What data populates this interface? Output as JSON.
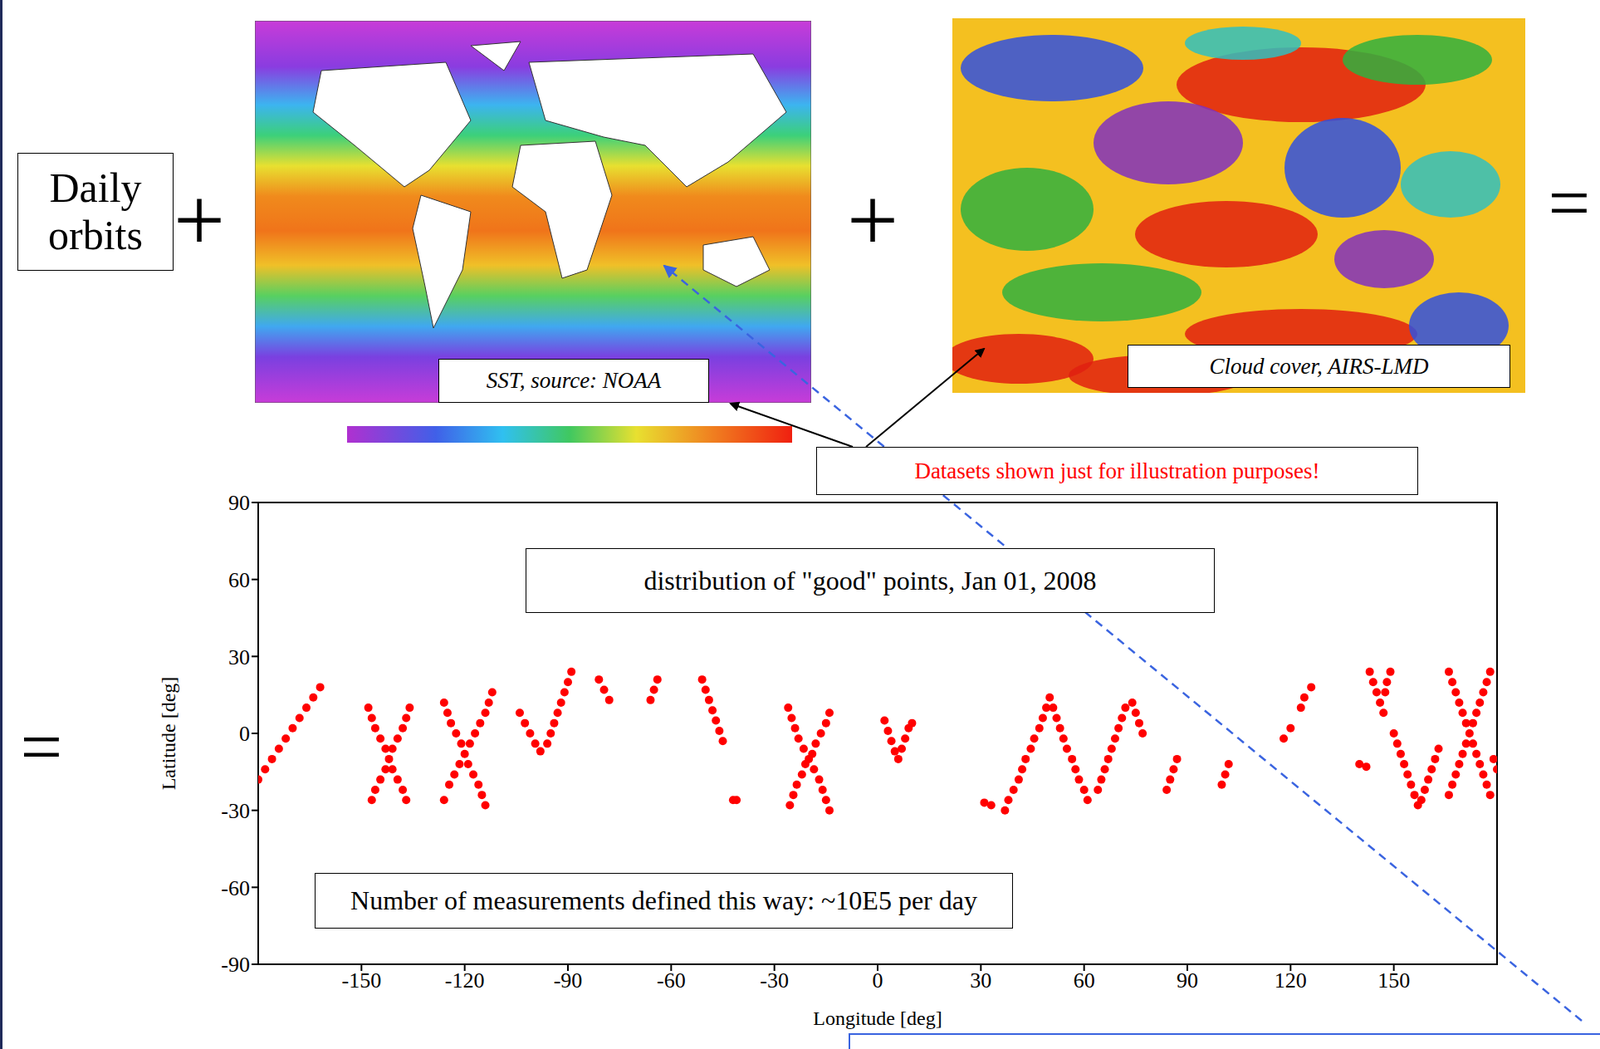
{
  "diagram": {
    "daily_orbits": "Daily orbits",
    "operators": {
      "plus": "+",
      "equals": "="
    },
    "images": [
      {
        "caption": "SST, source: NOAA"
      },
      {
        "caption": "Cloud cover, AIRS-LMD"
      }
    ],
    "note": "Datasets shown just for illustration purposes!"
  },
  "chart_data": {
    "type": "scatter",
    "annotations": [
      "distribution of \"good\" points, Jan 01, 2008",
      "Number of measurements defined this way: ~10E5 per day"
    ],
    "x_label": "Longitude [deg]",
    "y_label": "Latitude [deg]",
    "xlim": [
      -180,
      180
    ],
    "ylim": [
      -90,
      90
    ],
    "xticks": [
      -150,
      -120,
      -90,
      -60,
      -30,
      0,
      30,
      60,
      90,
      120,
      150
    ],
    "yticks": [
      -90,
      -60,
      -30,
      0,
      30,
      60,
      90
    ],
    "grid": false,
    "color": "#ff0000",
    "marker": "circle",
    "x": [
      -180,
      -178,
      -176,
      -174,
      -172,
      -170,
      -168,
      -166,
      -164,
      -162,
      -148,
      -147,
      -146,
      -144.5,
      -143,
      -142,
      -141,
      -139.5,
      -138,
      -137,
      -136,
      -137,
      -138,
      -139.5,
      -141,
      -143,
      -144.5,
      -146,
      -147,
      -126,
      -125,
      -124,
      -122.5,
      -121,
      -120,
      -119,
      -117.5,
      -116,
      -115,
      -114,
      -112,
      -113,
      -114,
      -115.5,
      -117,
      -118.5,
      -121.5,
      -123,
      -124.5,
      -126,
      -104,
      -102.5,
      -101,
      -99.5,
      -98,
      -96,
      -95,
      -94,
      -93,
      -92,
      -91,
      -90,
      -89,
      -81,
      -79.5,
      -78,
      -66,
      -65,
      -64,
      -51,
      -50,
      -49,
      -48,
      -47,
      -46,
      -45,
      -42,
      -41,
      -26,
      -25,
      -24,
      -23,
      -21.5,
      -20,
      -18.5,
      -17,
      -16,
      -15,
      -14,
      -14,
      -15,
      -16.5,
      -18,
      -19,
      -21,
      -22,
      -23.5,
      -24.5,
      -25.5,
      2,
      3,
      4,
      5,
      6,
      7,
      8,
      9,
      10,
      31,
      33,
      37,
      38,
      39.5,
      41,
      42,
      43,
      44.5,
      45.5,
      47,
      48,
      49,
      50,
      51,
      52,
      53,
      54,
      55,
      56.5,
      57.5,
      58.5,
      60,
      61,
      64,
      65,
      66,
      67,
      68,
      69,
      70,
      71,
      72,
      74,
      75,
      76,
      77,
      84,
      85,
      86,
      87,
      100,
      101,
      102,
      118,
      120,
      123,
      124,
      126,
      143,
      144,
      145,
      146,
      147,
      149,
      148,
      147.5,
      140,
      142,
      150,
      151,
      152,
      153,
      154,
      155,
      156,
      157,
      158,
      159,
      160,
      161,
      162,
      163,
      166,
      167,
      168,
      169,
      170,
      171,
      172,
      173,
      174,
      175,
      176,
      177,
      178,
      178,
      177,
      176,
      175,
      174,
      173,
      171,
      170,
      169,
      168,
      167,
      166,
      179,
      180
    ],
    "values": [
      -18,
      -14,
      -10,
      -6,
      -2,
      2,
      6,
      10,
      14,
      18,
      10,
      6,
      2,
      -2,
      -6,
      -10,
      -14,
      -18,
      -22,
      -26,
      10,
      6,
      2,
      -2,
      -6,
      -14,
      -18,
      -22,
      -26,
      12,
      8,
      4,
      0,
      -4,
      -8,
      -12,
      -16,
      -20,
      -24,
      -28,
      16,
      12,
      8,
      4,
      0,
      -4,
      -12,
      -16,
      -20,
      -26,
      8,
      4,
      0,
      -4,
      -7,
      -4,
      0,
      4,
      8,
      12,
      16,
      20,
      24,
      21,
      17,
      13,
      13,
      17,
      21,
      21,
      17,
      13,
      9,
      5,
      1,
      -3,
      -26,
      -26,
      10,
      6,
      2,
      -2,
      -6,
      -10,
      -14,
      -18,
      -22,
      -26,
      -30,
      8,
      4,
      0,
      -4,
      -8,
      -12,
      -16,
      -20,
      -24,
      -28,
      5,
      1,
      -3,
      -7,
      -10,
      -6,
      -2,
      2,
      4,
      -27,
      -28,
      -30,
      -26,
      -22,
      -18,
      -14,
      -10,
      -6,
      -2,
      2,
      6,
      10,
      14,
      10,
      6,
      2,
      -2,
      -6,
      -10,
      -14,
      -18,
      -22,
      -26,
      -22,
      -18,
      -14,
      -10,
      -6,
      -2,
      2,
      6,
      10,
      12,
      8,
      4,
      0,
      -22,
      -18,
      -14,
      -10,
      -20,
      -16,
      -12,
      -2,
      2,
      10,
      14,
      18,
      24,
      20,
      16,
      12,
      8,
      24,
      20,
      16,
      -12,
      -13,
      0,
      -4,
      -8,
      -12,
      -16,
      -20,
      -24,
      -28,
      -26,
      -22,
      -18,
      -14,
      -10,
      -6,
      24,
      20,
      16,
      12,
      8,
      4,
      0,
      -4,
      -8,
      -12,
      -16,
      -20,
      -24,
      24,
      20,
      16,
      12,
      8,
      4,
      -4,
      -8,
      -12,
      -16,
      -20,
      -24,
      -10,
      -14
    ]
  }
}
